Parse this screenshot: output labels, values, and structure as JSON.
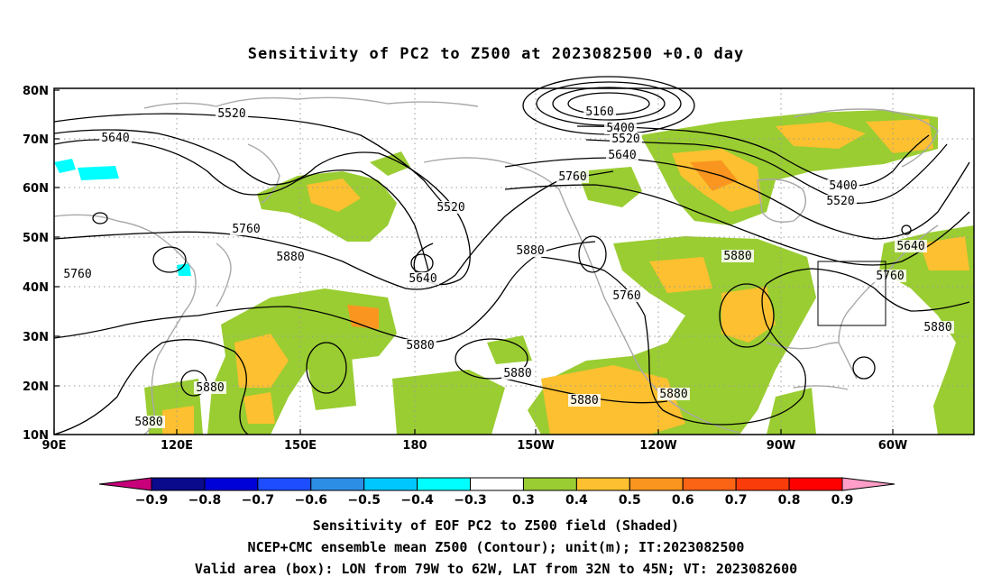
{
  "title": "Sensitivity of PC2 to Z500 at 2023082500 +0.0 day",
  "map": {
    "lon_ticks": [
      "90E",
      "120E",
      "150E",
      "180",
      "150W",
      "120W",
      "90W",
      "60W"
    ],
    "lat_ticks": [
      "80N",
      "70N",
      "60N",
      "50N",
      "40N",
      "30N",
      "20N",
      "10N"
    ],
    "contour_levels": [
      "5160",
      "5400",
      "5520",
      "5640",
      "5760",
      "5880"
    ],
    "valid_box": {
      "lon": "79W to 62W",
      "lat": "32N to 45N"
    }
  },
  "colorbar": {
    "labels": [
      "−0.9",
      "−0.8",
      "−0.7",
      "−0.6",
      "−0.5",
      "−0.4",
      "−0.3",
      "0.3",
      "0.4",
      "0.5",
      "0.6",
      "0.7",
      "0.8",
      "0.9"
    ],
    "colors": [
      "#c8007a",
      "#0a0a8c",
      "#0000d8",
      "#1d4dff",
      "#2d8ee6",
      "#00c8ff",
      "#00ffff",
      "#ffffff",
      "#9acd32",
      "#fcc030",
      "#fa9620",
      "#fa6414",
      "#fa3c0a",
      "#ff0000",
      "#ff9ec8"
    ]
  },
  "captions": {
    "line1": "Sensitivity of EOF PC2 to Z500 field (Shaded)",
    "line2": "NCEP+CMC ensemble mean Z500 (Contour); unit(m); IT:2023082500",
    "line3": "Valid area (box): LON from 79W to 62W, LAT from 32N to 45N; VT: 2023082600"
  }
}
